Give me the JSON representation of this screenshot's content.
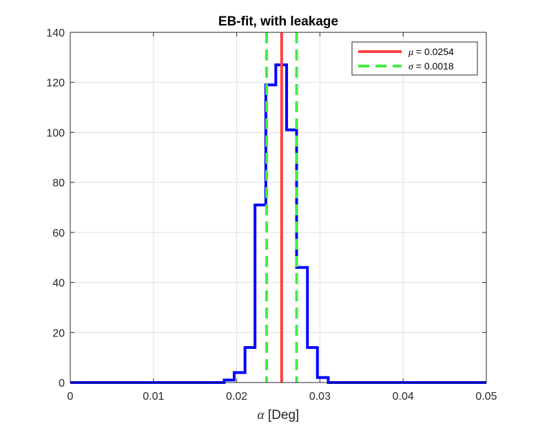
{
  "chart_data": {
    "type": "histogram",
    "title": "EB-fit, with leakage",
    "xlabel_symbol": "α",
    "xlabel_rest": " [Deg]",
    "ylabel": "",
    "xlim": [
      0,
      0.05
    ],
    "ylim": [
      0,
      140
    ],
    "xticks": [
      0,
      0.01,
      0.02,
      0.03,
      0.04,
      0.05
    ],
    "xtick_labels": [
      "0",
      "0.01",
      "0.02",
      "0.03",
      "0.04",
      "0.05"
    ],
    "yticks": [
      0,
      20,
      40,
      60,
      80,
      100,
      120,
      140
    ],
    "ytick_labels": [
      "0",
      "20",
      "40",
      "60",
      "80",
      "100",
      "120",
      "140"
    ],
    "grid": true,
    "legend_position": "top-right",
    "histogram": {
      "color": "#0000ff",
      "bin_edges": [
        0,
        0.0185,
        0.0197,
        0.021,
        0.0222,
        0.0235,
        0.0247,
        0.026,
        0.0272,
        0.0285,
        0.0297,
        0.031,
        0.05
      ],
      "counts": [
        0,
        1,
        4,
        14,
        71,
        119,
        127,
        101,
        46,
        14,
        2,
        0
      ]
    },
    "lines": [
      {
        "name_symbol": "μ",
        "name_rest": " = 0.0254",
        "value": 0.0254,
        "color": "#ff4040",
        "style": "solid"
      },
      {
        "name_symbol": "σ",
        "name_rest": " = 0.0018",
        "value": 0.0018,
        "color": "#40ee40",
        "style": "dashed",
        "positions": [
          0.0236,
          0.0272
        ]
      }
    ]
  }
}
